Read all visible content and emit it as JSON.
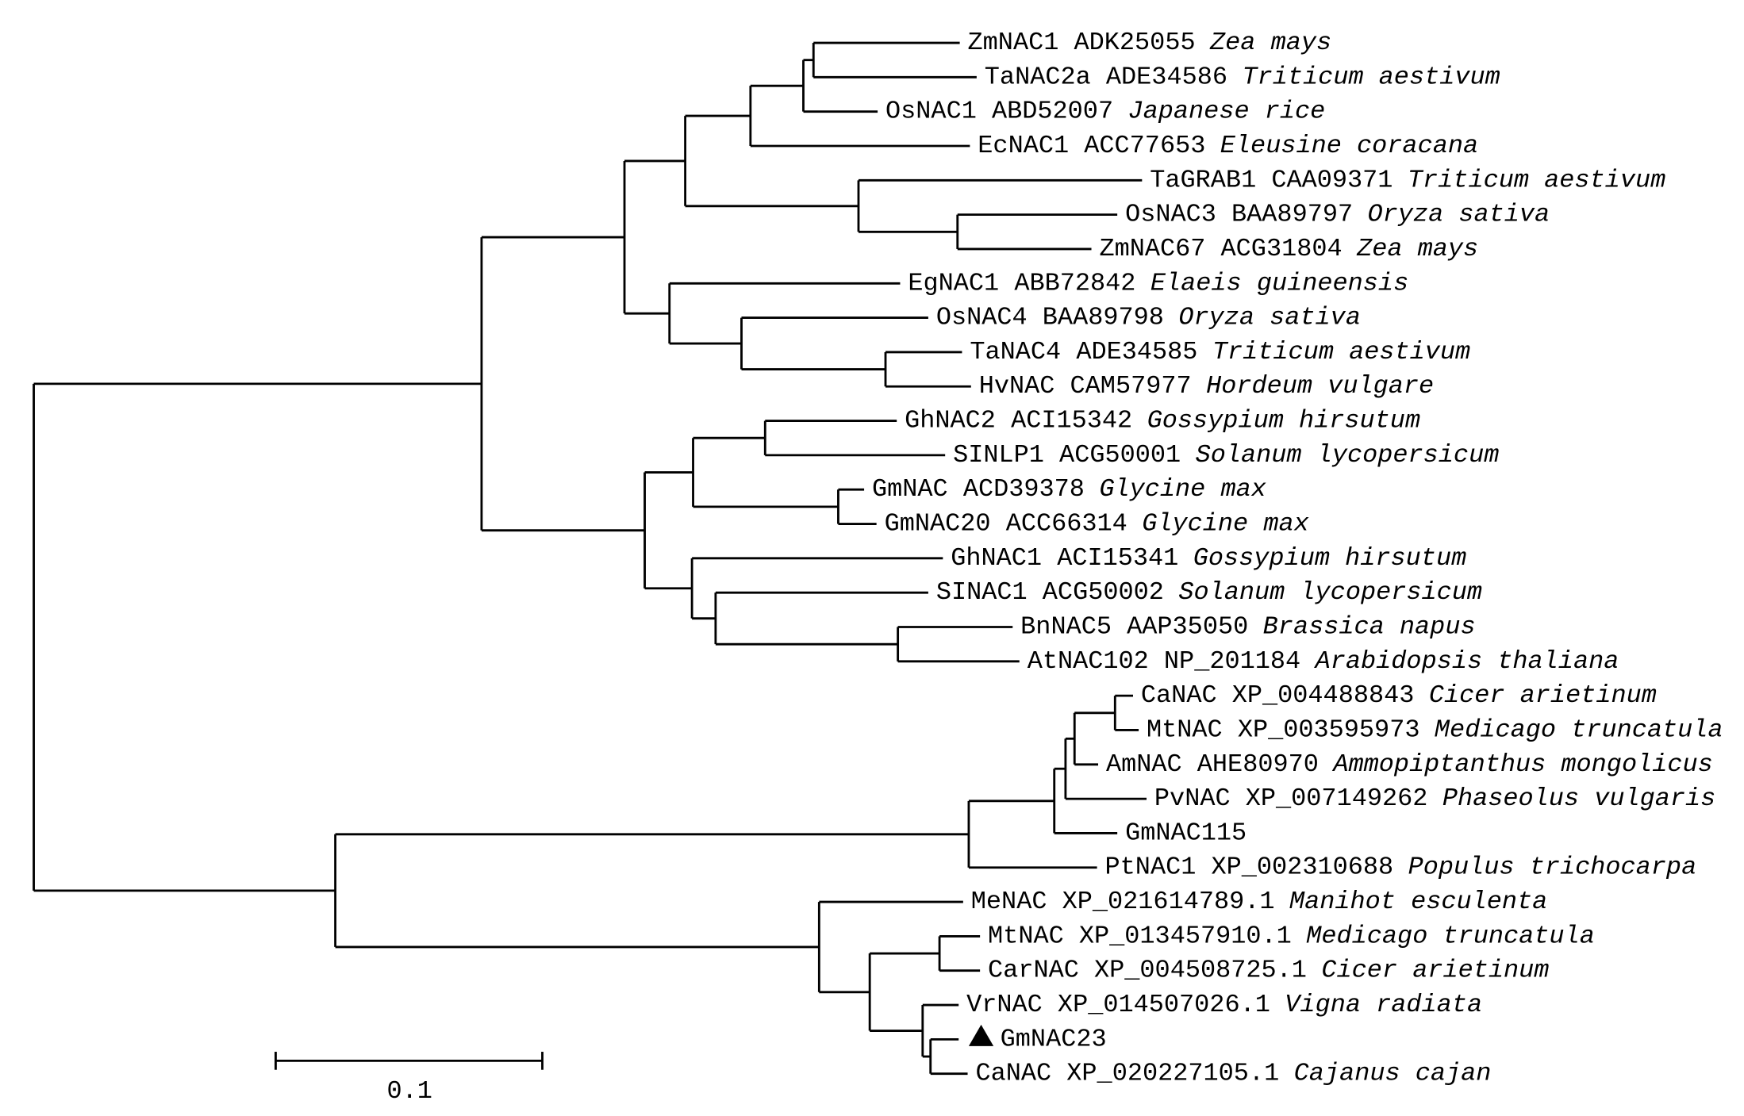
{
  "tree": {
    "leaves": [
      {
        "name": "ZmNAC1 ADK25055",
        "species": "Zea mays"
      },
      {
        "name": "TaNAC2a ADE34586",
        "species": "Triticum aestivum"
      },
      {
        "name": "OsNAC1 ABD52007",
        "species": "Japanese rice"
      },
      {
        "name": "EcNAC1 ACC77653",
        "species": "Eleusine coracana"
      },
      {
        "name": "TaGRAB1 CAA09371",
        "species": "Triticum aestivum"
      },
      {
        "name": "OsNAC3 BAA89797",
        "species": "Oryza sativa"
      },
      {
        "name": "ZmNAC67 ACG31804",
        "species": "Zea mays"
      },
      {
        "name": "EgNAC1 ABB72842",
        "species": "Elaeis guineensis"
      },
      {
        "name": "OsNAC4 BAA89798",
        "species": "Oryza sativa"
      },
      {
        "name": "TaNAC4 ADE34585",
        "species": "Triticum aestivum"
      },
      {
        "name": "HvNAC CAM57977",
        "species": "Hordeum vulgare"
      },
      {
        "name": "GhNAC2 ACI15342",
        "species": "Gossypium hirsutum"
      },
      {
        "name": "SINLP1 ACG50001",
        "species": "Solanum lycopersicum"
      },
      {
        "name": "GmNAC ACD39378",
        "species": "Glycine max"
      },
      {
        "name": "GmNAC20 ACC66314",
        "species": "Glycine max"
      },
      {
        "name": "GhNAC1 ACI15341",
        "species": "Gossypium hirsutum"
      },
      {
        "name": "SINAC1 ACG50002",
        "species": "Solanum lycopersicum"
      },
      {
        "name": "BnNAC5 AAP35050",
        "species": "Brassica napus"
      },
      {
        "name": "AtNAC102 NP_201184",
        "species": "Arabidopsis thaliana"
      },
      {
        "name": "CaNAC XP_004488843",
        "species": "Cicer arietinum"
      },
      {
        "name": "MtNAC XP_003595973",
        "species": "Medicago truncatula"
      },
      {
        "name": "AmNAC AHE80970",
        "species": "Ammopiptanthus mongolicus"
      },
      {
        "name": "PvNAC XP_007149262",
        "species": "Phaseolus vulgaris"
      },
      {
        "name": "GmNAC115"
      },
      {
        "name": "PtNAC1 XP_002310688",
        "species": "Populus trichocarpa"
      },
      {
        "name": "MeNAC XP_021614789.1",
        "species": "Manihot esculenta"
      },
      {
        "name": "MtNAC XP_013457910.1",
        "species": "Medicago truncatula"
      },
      {
        "name": "CarNAC XP_004508725.1",
        "species": "Cicer arietinum"
      },
      {
        "name": "VrNAC XP_014507026.1",
        "species": "Vigna radiata"
      },
      {
        "name": "GmNAC23",
        "highlight": true
      },
      {
        "name": "CaNAC XP_020227105.1",
        "species": "Cajanus cajan"
      }
    ],
    "scale_bar": "0.1"
  }
}
